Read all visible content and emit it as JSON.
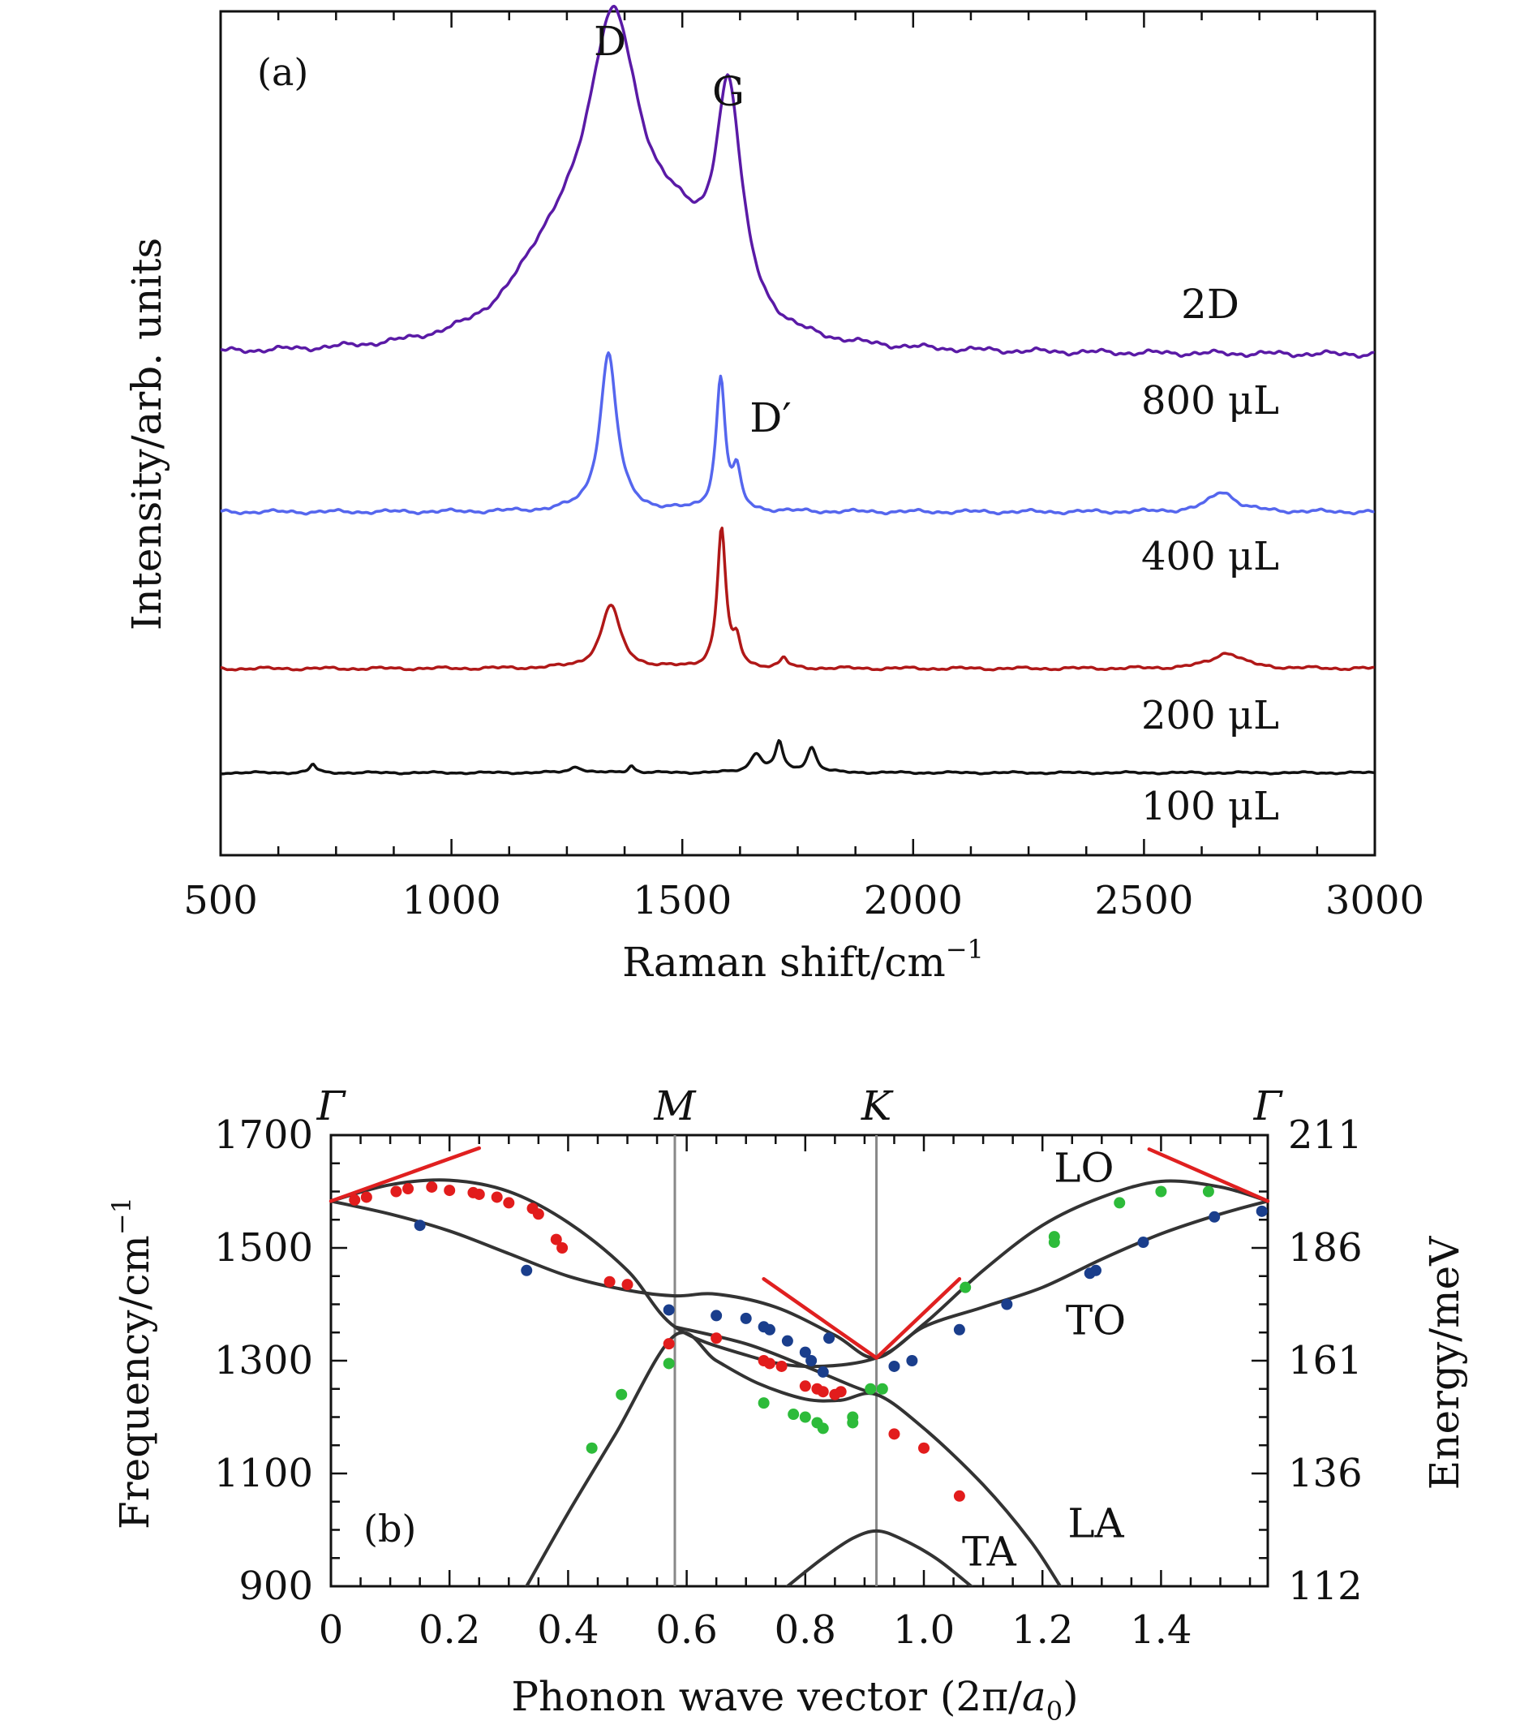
{
  "chart_data": [
    {
      "type": "line",
      "panel_label": "(a)",
      "xlabel": "Raman shift/cm",
      "xlabel_sup": "−1",
      "ylabel": "Intensity/arb. units",
      "xlim": [
        500,
        3000
      ],
      "x_ticks": [
        "500",
        "1000",
        "1500",
        "2000",
        "2500",
        "3000"
      ],
      "peak_labels": [
        {
          "text": "D",
          "x": 1350
        },
        {
          "text": "G",
          "x": 1600
        },
        {
          "text": "D′",
          "x": 1620
        },
        {
          "text": "2D",
          "x": 2680
        }
      ],
      "series": [
        {
          "name": "800 μL",
          "color": "#5a1aa6",
          "peaks": [
            [
              1350,
              1.0,
              70
            ],
            [
              1600,
              0.78,
              35
            ],
            [
              1220,
              0.25,
              110
            ],
            [
              1480,
              0.28,
              90
            ]
          ],
          "baseline": 0.02
        },
        {
          "name": "400 μL",
          "color": "#5566ee",
          "peaks": [
            [
              1340,
              0.78,
              22
            ],
            [
              1583,
              0.65,
              12
            ],
            [
              1618,
              0.18,
              10
            ],
            [
              2670,
              0.1,
              35
            ]
          ],
          "baseline": 0.02
        },
        {
          "name": "200 μL",
          "color": "#b01818",
          "peaks": [
            [
              1345,
              0.4,
              25
            ],
            [
              1585,
              0.88,
              11
            ],
            [
              1618,
              0.15,
              10
            ],
            [
              1720,
              0.06,
              10
            ],
            [
              2680,
              0.1,
              40
            ]
          ],
          "baseline": 0.02
        },
        {
          "name": "100 μL",
          "color": "#111111",
          "peaks": [
            [
              700,
              0.08,
              8
            ],
            [
              1270,
              0.06,
              15
            ],
            [
              1390,
              0.07,
              8
            ],
            [
              1660,
              0.18,
              15
            ],
            [
              1710,
              0.28,
              10
            ],
            [
              1780,
              0.24,
              12
            ]
          ],
          "baseline": 0.02
        }
      ]
    },
    {
      "type": "line",
      "panel_label": "(b)",
      "xlabel_prefix": "Phonon wave vector (2π/",
      "xlabel_italic": "a",
      "xlabel_sub": "0",
      "xlabel_suffix": ")",
      "ylabel_left": "Frequency/cm",
      "ylabel_left_sup": "−1",
      "ylabel_right": "Energy/meV",
      "xlim": [
        0,
        1.58
      ],
      "ylim": [
        900,
        1700
      ],
      "x_ticks": [
        "0",
        "0.2",
        "0.4",
        "0.6",
        "0.8",
        "1.0",
        "1.2",
        "1.4"
      ],
      "y_ticks_left": [
        "900",
        "1100",
        "1300",
        "1500",
        "1700"
      ],
      "y_ticks_right": [
        "112",
        "136",
        "161",
        "186",
        "211"
      ],
      "symmetry_points": [
        {
          "label": "Γ",
          "x": 0
        },
        {
          "label": "M",
          "x": 0.58
        },
        {
          "label": "K",
          "x": 0.92
        },
        {
          "label": "Γ",
          "x": 1.58
        }
      ],
      "branch_labels": [
        {
          "text": "LO",
          "x": 1.27,
          "y": 1640
        },
        {
          "text": "TO",
          "x": 1.29,
          "y": 1370
        },
        {
          "text": "LA",
          "x": 1.29,
          "y": 1010
        },
        {
          "text": "TA",
          "x": 1.11,
          "y": 960
        }
      ],
      "branches": [
        {
          "name": "LO",
          "points": [
            [
              0,
              1583
            ],
            [
              0.1,
              1612
            ],
            [
              0.2,
              1620
            ],
            [
              0.3,
              1600
            ],
            [
              0.4,
              1545
            ],
            [
              0.5,
              1460
            ],
            [
              0.58,
              1360
            ],
            [
              0.7,
              1310
            ],
            [
              0.8,
              1290
            ],
            [
              0.92,
              1305
            ],
            [
              1.0,
              1365
            ],
            [
              1.1,
              1460
            ],
            [
              1.2,
              1540
            ],
            [
              1.3,
              1590
            ],
            [
              1.4,
              1618
            ],
            [
              1.5,
              1608
            ],
            [
              1.58,
              1583
            ]
          ]
        },
        {
          "name": "TO",
          "points": [
            [
              0,
              1583
            ],
            [
              0.1,
              1560
            ],
            [
              0.2,
              1530
            ],
            [
              0.3,
              1490
            ],
            [
              0.4,
              1450
            ],
            [
              0.5,
              1425
            ],
            [
              0.58,
              1415
            ],
            [
              0.65,
              1418
            ],
            [
              0.75,
              1395
            ],
            [
              0.85,
              1345
            ],
            [
              0.92,
              1305
            ],
            [
              1.0,
              1360
            ],
            [
              1.1,
              1395
            ],
            [
              1.2,
              1430
            ],
            [
              1.3,
              1480
            ],
            [
              1.4,
              1525
            ],
            [
              1.5,
              1560
            ],
            [
              1.58,
              1583
            ]
          ]
        },
        {
          "name": "LA-upper",
          "points": [
            [
              0.33,
              900
            ],
            [
              0.4,
              1030
            ],
            [
              0.48,
              1170
            ],
            [
              0.58,
              1345
            ],
            [
              0.65,
              1300
            ],
            [
              0.72,
              1260
            ],
            [
              0.8,
              1232
            ],
            [
              0.86,
              1230
            ],
            [
              0.92,
              1240
            ],
            [
              1.0,
              1180
            ],
            [
              1.1,
              1080
            ],
            [
              1.18,
              980
            ],
            [
              1.23,
              900
            ]
          ]
        },
        {
          "name": "mid-branch",
          "points": [
            [
              0.58,
              1360
            ],
            [
              0.7,
              1330
            ],
            [
              0.8,
              1290
            ],
            [
              0.88,
              1255
            ],
            [
              0.92,
              1240
            ]
          ]
        },
        {
          "name": "TA",
          "points": [
            [
              0.77,
              900
            ],
            [
              0.83,
              950
            ],
            [
              0.88,
              985
            ],
            [
              0.92,
              998
            ],
            [
              0.96,
              985
            ],
            [
              1.02,
              950
            ],
            [
              1.08,
              900
            ]
          ]
        }
      ],
      "kohn_anomaly_lines": [
        [
          [
            0,
            1583
          ],
          [
            0.25,
            1677
          ]
        ],
        [
          [
            0.73,
            1445
          ],
          [
            0.92,
            1305
          ]
        ],
        [
          [
            0.92,
            1305
          ],
          [
            1.06,
            1445
          ]
        ],
        [
          [
            1.38,
            1675
          ],
          [
            1.58,
            1583
          ]
        ]
      ],
      "points_red": [
        [
          0.04,
          1585
        ],
        [
          0.06,
          1590
        ],
        [
          0.11,
          1600
        ],
        [
          0.13,
          1605
        ],
        [
          0.17,
          1608
        ],
        [
          0.2,
          1602
        ],
        [
          0.24,
          1598
        ],
        [
          0.25,
          1595
        ],
        [
          0.28,
          1590
        ],
        [
          0.3,
          1580
        ],
        [
          0.34,
          1570
        ],
        [
          0.35,
          1560
        ],
        [
          0.38,
          1515
        ],
        [
          0.39,
          1500
        ],
        [
          0.47,
          1440
        ],
        [
          0.5,
          1435
        ],
        [
          0.57,
          1330
        ],
        [
          0.65,
          1340
        ],
        [
          0.73,
          1300
        ],
        [
          0.74,
          1295
        ],
        [
          0.76,
          1290
        ],
        [
          0.8,
          1255
        ],
        [
          0.82,
          1250
        ],
        [
          0.83,
          1245
        ],
        [
          0.85,
          1240
        ],
        [
          0.86,
          1245
        ],
        [
          0.95,
          1170
        ],
        [
          1.0,
          1145
        ],
        [
          1.06,
          1060
        ]
      ],
      "points_green": [
        [
          0.44,
          1145
        ],
        [
          0.49,
          1240
        ],
        [
          0.57,
          1295
        ],
        [
          0.73,
          1225
        ],
        [
          0.78,
          1205
        ],
        [
          0.8,
          1200
        ],
        [
          0.82,
          1190
        ],
        [
          0.83,
          1180
        ],
        [
          0.88,
          1200
        ],
        [
          0.88,
          1190
        ],
        [
          0.91,
          1250
        ],
        [
          0.93,
          1250
        ],
        [
          1.07,
          1430
        ],
        [
          1.22,
          1510
        ],
        [
          1.22,
          1520
        ],
        [
          1.33,
          1580
        ],
        [
          1.4,
          1600
        ],
        [
          1.48,
          1600
        ]
      ],
      "points_blue": [
        [
          0.15,
          1540
        ],
        [
          0.33,
          1460
        ],
        [
          0.57,
          1390
        ],
        [
          0.65,
          1380
        ],
        [
          0.7,
          1375
        ],
        [
          0.73,
          1360
        ],
        [
          0.74,
          1355
        ],
        [
          0.77,
          1335
        ],
        [
          0.8,
          1315
        ],
        [
          0.81,
          1300
        ],
        [
          0.83,
          1280
        ],
        [
          0.84,
          1340
        ],
        [
          0.95,
          1290
        ],
        [
          0.98,
          1300
        ],
        [
          1.06,
          1355
        ],
        [
          1.14,
          1400
        ],
        [
          1.28,
          1455
        ],
        [
          1.29,
          1460
        ],
        [
          1.37,
          1510
        ],
        [
          1.49,
          1555
        ],
        [
          1.57,
          1565
        ]
      ]
    }
  ]
}
